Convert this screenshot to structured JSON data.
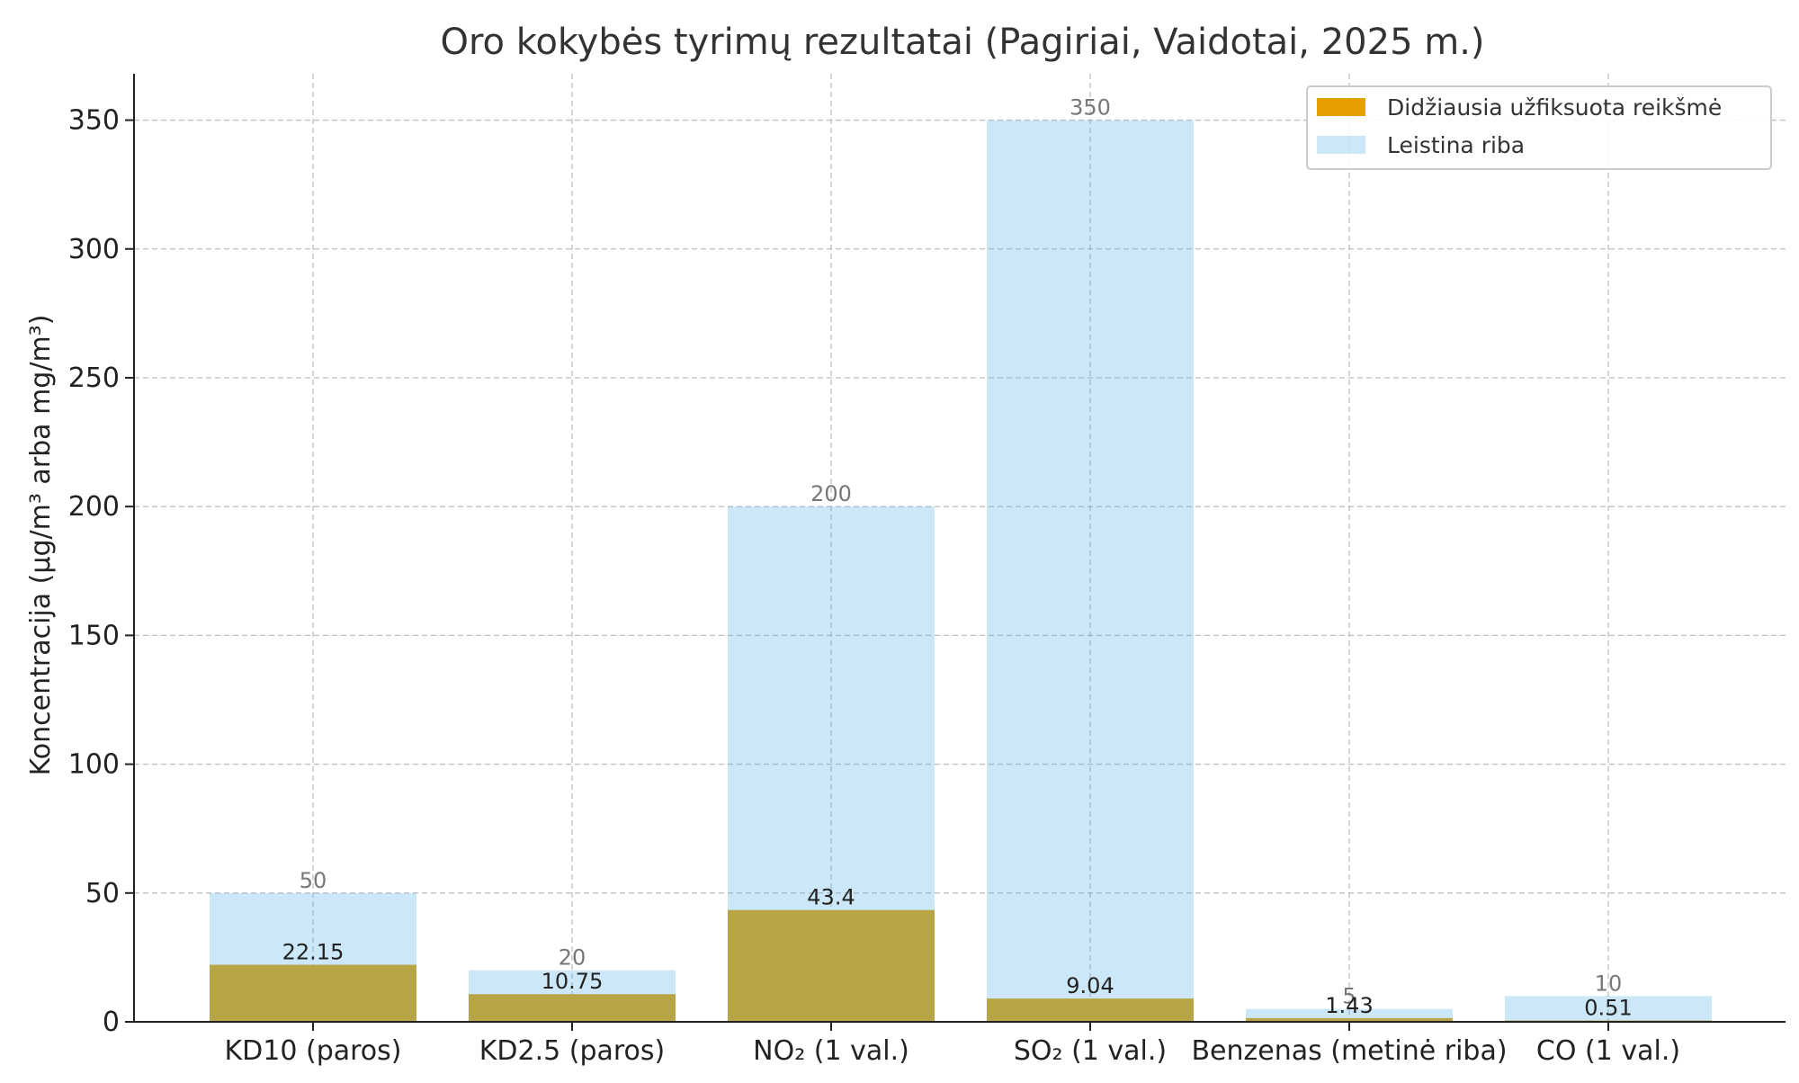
{
  "chart_data": {
    "type": "bar",
    "title": "Oro kokybės tyrimų rezultatai (Pagiriai, Vaidotai, 2025 m.)",
    "xlabel": "",
    "ylabel": "Koncentracija (µg/m³ arba mg/m³)",
    "categories": [
      "KD10 (paros)",
      "KD2.5 (paros)",
      "NO₂ (1 val.)",
      "SO₂ (1 val.)",
      "Benzenas (metinė riba)",
      "CO (1 val.)"
    ],
    "series": [
      {
        "name": "Didžiausia užfiksuota reikšmė",
        "values": [
          22.15,
          10.75,
          43.4,
          9.04,
          1.43,
          0.51
        ],
        "color": "#E69F00"
      },
      {
        "name": "Leistina riba",
        "values": [
          50,
          20,
          200,
          350,
          5,
          10
        ],
        "color": "#56B4E9"
      }
    ],
    "data_labels": {
      "measured": [
        "22.15",
        "10.75",
        "43.4",
        "9.04",
        "1.43",
        "0.51"
      ],
      "limit": [
        "50",
        "20",
        "200",
        "350",
        "5",
        "10"
      ]
    },
    "ylim": [
      0,
      368
    ],
    "yticks": [
      0,
      50,
      100,
      150,
      200,
      250,
      300,
      350
    ],
    "ytick_labels": [
      "0",
      "50",
      "100",
      "150",
      "200",
      "250",
      "300",
      "350"
    ],
    "grid": true,
    "legend_position": "top-right"
  }
}
